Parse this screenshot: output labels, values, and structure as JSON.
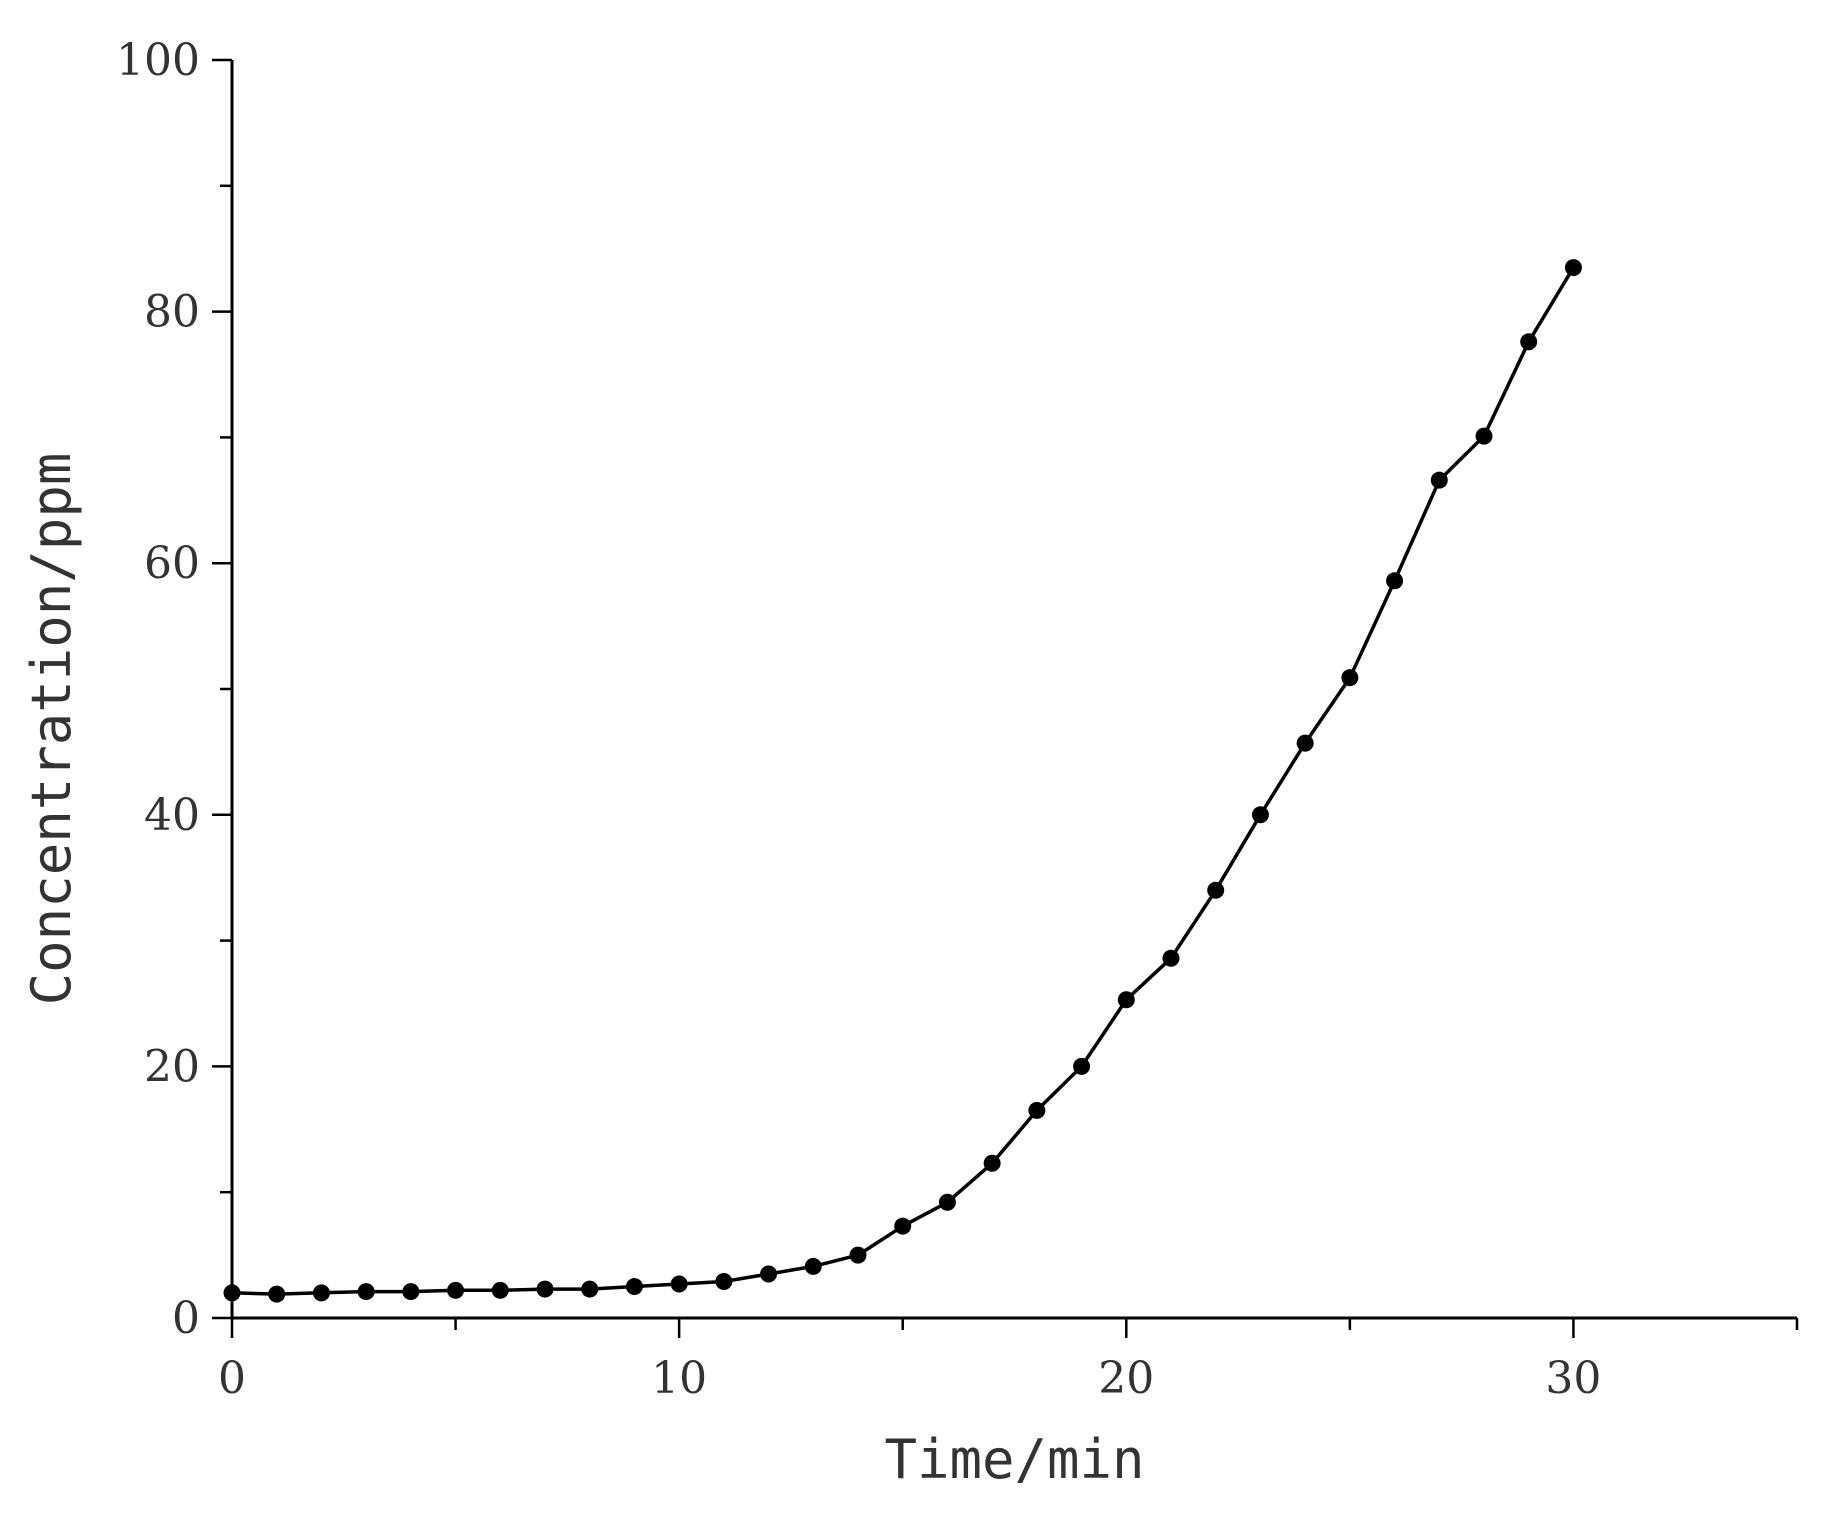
{
  "chart_data": {
    "type": "line",
    "title": "",
    "xlabel": "Time/min",
    "ylabel": "Concentration/ppm",
    "xlim": [
      0,
      35
    ],
    "ylim": [
      0,
      100
    ],
    "x_ticks": [
      0,
      10,
      20,
      30
    ],
    "y_ticks": [
      0,
      20,
      40,
      60,
      80,
      100
    ],
    "grid": false,
    "legend": "none",
    "series": [
      {
        "color": "#000000",
        "marker": "circle",
        "x": [
          0,
          1,
          2,
          3,
          4,
          5,
          6,
          7,
          8,
          9,
          10,
          11,
          12,
          13,
          14,
          15,
          16,
          17,
          18,
          19,
          20,
          21,
          22,
          23,
          24,
          25,
          26,
          27,
          28,
          29,
          30
        ],
        "y": [
          2.0,
          1.9,
          2.0,
          2.1,
          2.1,
          2.2,
          2.2,
          2.3,
          2.3,
          2.5,
          2.7,
          2.9,
          3.5,
          4.1,
          5.0,
          7.3,
          9.2,
          12.3,
          16.5,
          20.0,
          25.3,
          28.6,
          34.0,
          40.0,
          45.7,
          50.9,
          58.6,
          66.6,
          70.1,
          77.6,
          83.5
        ]
      }
    ]
  }
}
